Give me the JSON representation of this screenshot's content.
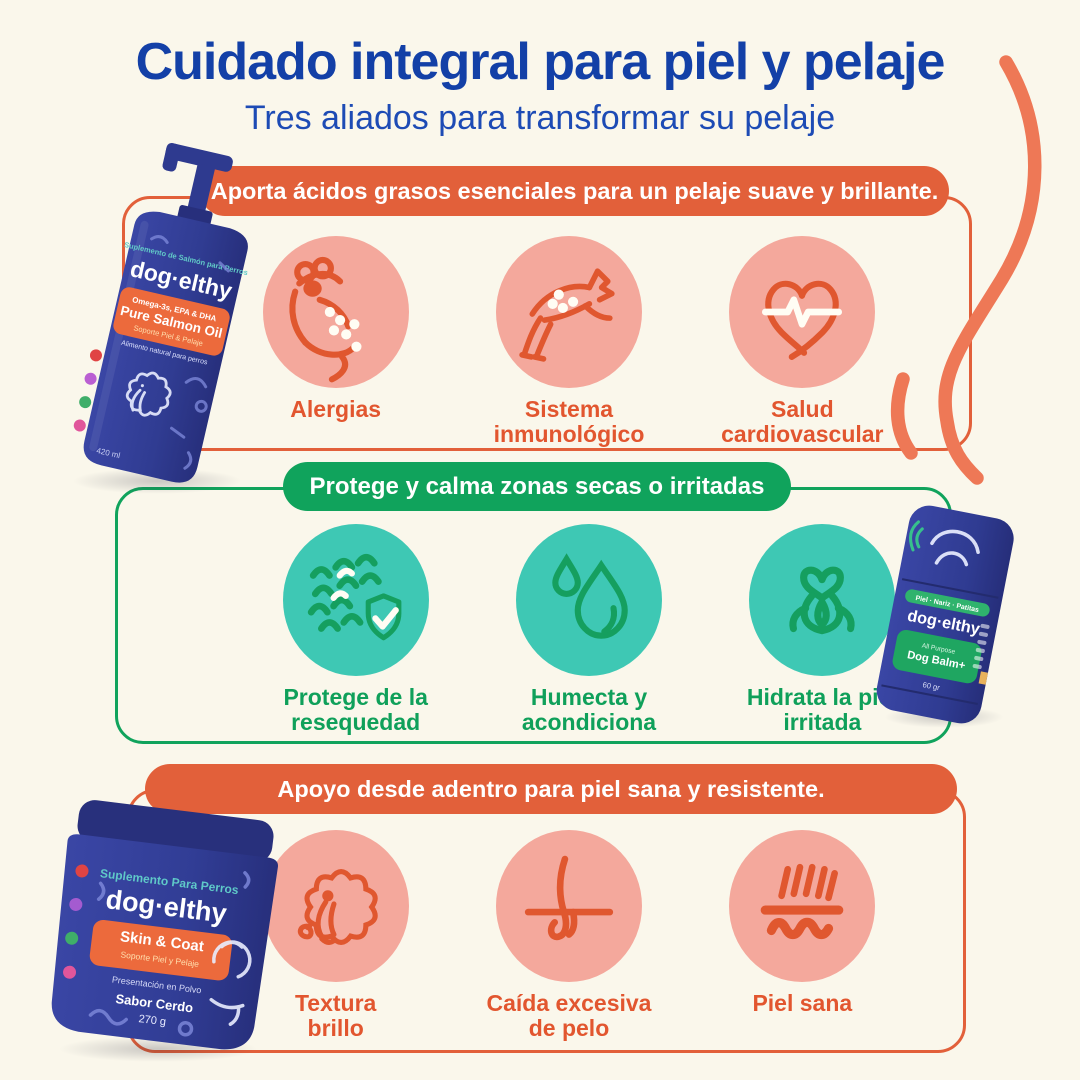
{
  "header": {
    "title": "Cuidado integral para piel y pelaje",
    "subtitle": "Tres aliados para transformar su pelaje"
  },
  "sections": [
    {
      "banner": "Aporta ácidos grasos esenciales para un pelaje suave y brillante.",
      "accent_color": "#E2603A",
      "benefits": [
        {
          "icon": "scratching-dog-icon",
          "label": "Alergias"
        },
        {
          "icon": "jumping-dog-icon",
          "label": "Sistema\ninmunológico"
        },
        {
          "icon": "heart-pulse-icon",
          "label": "Salud\ncardiovascular"
        }
      ]
    },
    {
      "banner": "Protege y calma zonas secas o irritadas",
      "accent_color": "#10A35C",
      "benefits": [
        {
          "icon": "fur-shield-icon",
          "label": "Protege de la\nresequedad"
        },
        {
          "icon": "water-drops-icon",
          "label": "Humecta y\nacondiciona"
        },
        {
          "icon": "soothed-dog-icon",
          "label": "Hidrata la piel\nirritada"
        }
      ]
    },
    {
      "banner": "Apoyo desde adentro para piel sana y resistente.",
      "accent_color": "#E2603A",
      "benefits": [
        {
          "icon": "poodle-coat-icon",
          "label": "Textura\nbrillo"
        },
        {
          "icon": "hair-follicle-icon",
          "label": "Caída excesiva\nde pelo"
        },
        {
          "icon": "healthy-skin-icon",
          "label": "Piel sana"
        }
      ]
    }
  ],
  "products": {
    "salmon_oil": {
      "tagline": "Suplemento de Salmón para Perros",
      "brand": "dog·elthy",
      "badge_top": "Omega-3s, EPA & DHA",
      "badge_main": "Pure Salmon Oil",
      "badge_sub": "Soporte Piel & Pelaje",
      "note": "Alimento natural para perros",
      "size": "420 ml"
    },
    "dog_balm": {
      "tagline": "Piel · Nariz · Patitas",
      "brand": "dog·elthy",
      "badge_top": "All Purpose",
      "badge_main": "Dog Balm+",
      "size": "60 gr"
    },
    "skin_coat": {
      "tagline": "Suplemento Para Perros",
      "brand": "dog·elthy",
      "badge_main": "Skin & Coat",
      "badge_sub": "Soporte Piel y Pelaje",
      "note": "Presentación en Polvo",
      "flavor": "Sabor Cerdo",
      "size": "270 g"
    }
  },
  "colors": {
    "background": "#FAF7EB",
    "title_blue": "#1340A7",
    "orange": "#E2603A",
    "green": "#10A35C",
    "pink_circle": "#F4A89C",
    "teal_circle": "#3EC8B4",
    "product_navy": "#2F3A8F"
  }
}
